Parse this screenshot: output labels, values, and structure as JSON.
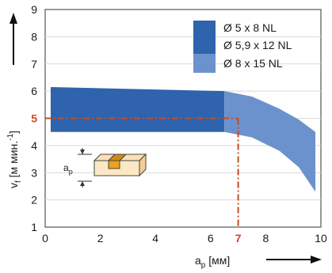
{
  "chart_data": {
    "type": "area",
    "xlim": [
      0,
      10
    ],
    "ylim": [
      1,
      9
    ],
    "x_ticks": [
      "0",
      "2",
      "4",
      "6",
      "7",
      "8",
      "10"
    ],
    "y_ticks": [
      "1",
      "2",
      "3",
      "4",
      "5",
      "6",
      "7",
      "8",
      "9"
    ],
    "highlight": {
      "x": 7,
      "x_label": "7",
      "y": 5,
      "y_label": "5",
      "color": "#cc4a1f"
    },
    "xlabel": {
      "base": "a",
      "sub": "p",
      "unit": " [мм]"
    },
    "ylabel": {
      "base": "v",
      "sub": "f",
      "unit": " [м мин.",
      "sup": "-1",
      "close": "]"
    },
    "inset_label": {
      "base": "a",
      "sub": "p"
    },
    "grid": true,
    "legend_position": "top-right",
    "series": [
      {
        "name": "Ø 5 x 8 NL",
        "color": "#2f63ad",
        "x": [
          0.2,
          6.5
        ],
        "upper": [
          6.15,
          6.0
        ],
        "lower": [
          4.5,
          4.5
        ]
      },
      {
        "name": "Ø 5,9 x 12 NL",
        "color": "#2f63ad",
        "x": [
          0.2,
          6.5
        ],
        "upper": [
          6.15,
          6.0
        ],
        "lower": [
          4.5,
          4.5
        ]
      },
      {
        "name": "Ø 8 x 15 NL",
        "color": "#6b92cc",
        "x": [
          6.5,
          7.5,
          8.5,
          9.2,
          9.8
        ],
        "upper": [
          6.0,
          5.8,
          5.35,
          4.95,
          4.5
        ],
        "lower": [
          4.5,
          4.3,
          3.8,
          3.2,
          2.3
        ]
      }
    ]
  }
}
